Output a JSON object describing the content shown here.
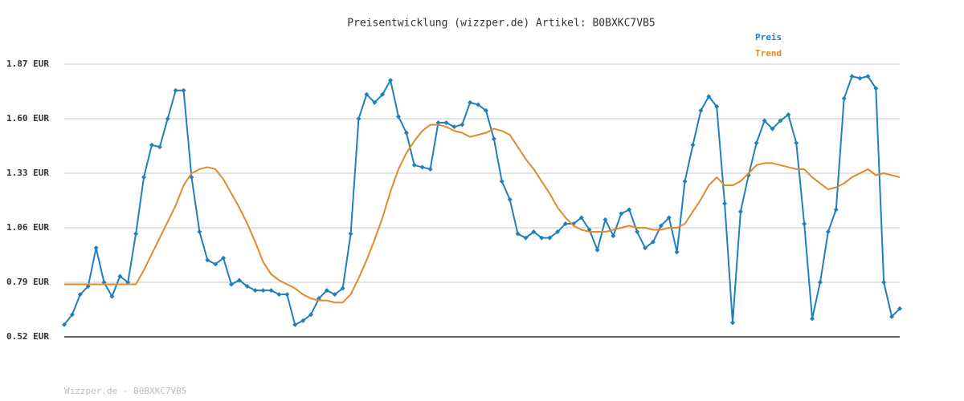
{
  "chart_data": {
    "type": "line",
    "title": "Preisentwicklung (wizzper.de) Artikel: B0BXKC7VB5",
    "footer": "Wizzper.de - B0BXKC7VB5",
    "ylim": [
      0.52,
      1.87
    ],
    "yticks": [
      {
        "value": 0.52,
        "label": "0.52 EUR"
      },
      {
        "value": 0.79,
        "label": "0.79 EUR"
      },
      {
        "value": 1.06,
        "label": "1.06 EUR"
      },
      {
        "value": 1.33,
        "label": "1.33 EUR"
      },
      {
        "value": 1.6,
        "label": "1.60 EUR"
      },
      {
        "value": 1.87,
        "label": "1.87 EUR"
      }
    ],
    "grid": true,
    "series": [
      {
        "name": "Preis",
        "color": "#1f80bd",
        "markers": true,
        "values": [
          0.58,
          0.63,
          0.73,
          0.77,
          0.96,
          0.79,
          0.72,
          0.82,
          0.79,
          1.03,
          1.31,
          1.47,
          1.46,
          1.6,
          1.74,
          1.74,
          1.31,
          1.04,
          0.9,
          0.88,
          0.91,
          0.78,
          0.8,
          0.77,
          0.75,
          0.75,
          0.75,
          0.73,
          0.73,
          0.58,
          0.6,
          0.63,
          0.71,
          0.75,
          0.73,
          0.76,
          1.03,
          1.6,
          1.72,
          1.68,
          1.72,
          1.79,
          1.61,
          1.53,
          1.37,
          1.36,
          1.35,
          1.58,
          1.58,
          1.56,
          1.57,
          1.68,
          1.67,
          1.64,
          1.5,
          1.29,
          1.2,
          1.03,
          1.01,
          1.04,
          1.01,
          1.01,
          1.04,
          1.08,
          1.08,
          1.11,
          1.05,
          0.95,
          1.1,
          1.02,
          1.13,
          1.15,
          1.04,
          0.96,
          0.99,
          1.07,
          1.11,
          0.94,
          1.29,
          1.47,
          1.64,
          1.71,
          1.66,
          1.18,
          0.59,
          1.14,
          1.32,
          1.48,
          1.59,
          1.55,
          1.59,
          1.62,
          1.48,
          1.08,
          0.61,
          0.79,
          1.04,
          1.15,
          1.7,
          1.81,
          1.8,
          1.81,
          1.75,
          0.79,
          0.62,
          0.66
        ]
      },
      {
        "name": "Trend",
        "color": "#e08a28",
        "markers": false,
        "values": [
          0.78,
          0.78,
          0.78,
          0.78,
          0.78,
          0.78,
          0.78,
          0.78,
          0.78,
          0.78,
          0.85,
          0.93,
          1.01,
          1.09,
          1.17,
          1.27,
          1.33,
          1.35,
          1.36,
          1.35,
          1.3,
          1.23,
          1.16,
          1.08,
          0.99,
          0.89,
          0.83,
          0.8,
          0.78,
          0.76,
          0.73,
          0.71,
          0.7,
          0.7,
          0.69,
          0.69,
          0.73,
          0.81,
          0.9,
          1.0,
          1.11,
          1.24,
          1.35,
          1.43,
          1.49,
          1.54,
          1.57,
          1.57,
          1.56,
          1.54,
          1.53,
          1.51,
          1.52,
          1.53,
          1.55,
          1.54,
          1.52,
          1.46,
          1.4,
          1.35,
          1.29,
          1.23,
          1.16,
          1.11,
          1.07,
          1.05,
          1.04,
          1.04,
          1.04,
          1.05,
          1.06,
          1.07,
          1.06,
          1.06,
          1.05,
          1.05,
          1.06,
          1.06,
          1.08,
          1.14,
          1.2,
          1.27,
          1.31,
          1.27,
          1.27,
          1.29,
          1.33,
          1.37,
          1.38,
          1.38,
          1.37,
          1.36,
          1.35,
          1.35,
          1.31,
          1.28,
          1.25,
          1.26,
          1.28,
          1.31,
          1.33,
          1.35,
          1.32,
          1.33,
          1.32,
          1.31
        ]
      }
    ]
  }
}
